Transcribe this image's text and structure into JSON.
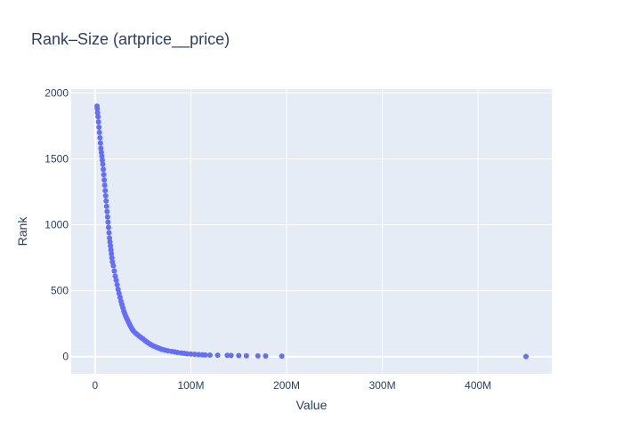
{
  "chart_data": {
    "type": "scatter",
    "title": "Rank–Size (artprice__price)",
    "xlabel": "Value",
    "ylabel": "Rank",
    "xlim": [
      -25000000,
      477000000
    ],
    "ylim": [
      -130,
      2030
    ],
    "x_ticks": [
      {
        "value": 0,
        "label": "0"
      },
      {
        "value": 100000000,
        "label": "100M"
      },
      {
        "value": 200000000,
        "label": "200M"
      },
      {
        "value": 300000000,
        "label": "300M"
      },
      {
        "value": 400000000,
        "label": "400M"
      }
    ],
    "y_ticks": [
      {
        "value": 0,
        "label": "0"
      },
      {
        "value": 500,
        "label": "500"
      },
      {
        "value": 1000,
        "label": "1000"
      },
      {
        "value": 1500,
        "label": "1500"
      },
      {
        "value": 2000,
        "label": "2000"
      }
    ],
    "grid": true,
    "marker_color": "#636efa",
    "plot_bgcolor": "#e5ecf6",
    "points": [
      [
        2000000,
        1900
      ],
      [
        2200000,
        1880
      ],
      [
        2500000,
        1850
      ],
      [
        3000000,
        1820
      ],
      [
        3500000,
        1780
      ],
      [
        4000000,
        1740
      ],
      [
        4500000,
        1700
      ],
      [
        5000000,
        1660
      ],
      [
        5500000,
        1620
      ],
      [
        6000000,
        1580
      ],
      [
        6500000,
        1550
      ],
      [
        7000000,
        1520
      ],
      [
        7500000,
        1490
      ],
      [
        8000000,
        1460
      ],
      [
        8500000,
        1420
      ],
      [
        9000000,
        1380
      ],
      [
        9500000,
        1340
      ],
      [
        10000000,
        1300
      ],
      [
        10500000,
        1260
      ],
      [
        11000000,
        1220
      ],
      [
        11500000,
        1180
      ],
      [
        12000000,
        1140
      ],
      [
        12500000,
        1100
      ],
      [
        13000000,
        1060
      ],
      [
        13500000,
        1020
      ],
      [
        14000000,
        980
      ],
      [
        14500000,
        940
      ],
      [
        15000000,
        900
      ],
      [
        15500000,
        870
      ],
      [
        16000000,
        840
      ],
      [
        16500000,
        810
      ],
      [
        17000000,
        780
      ],
      [
        17500000,
        750
      ],
      [
        18000000,
        720
      ],
      [
        19000000,
        690
      ],
      [
        20000000,
        650
      ],
      [
        21000000,
        610
      ],
      [
        22000000,
        580
      ],
      [
        23000000,
        545
      ],
      [
        24000000,
        510
      ],
      [
        25000000,
        480
      ],
      [
        26000000,
        450
      ],
      [
        27000000,
        420
      ],
      [
        28000000,
        395
      ],
      [
        29000000,
        370
      ],
      [
        30000000,
        345
      ],
      [
        31000000,
        325
      ],
      [
        32000000,
        305
      ],
      [
        33000000,
        290
      ],
      [
        34000000,
        275
      ],
      [
        35000000,
        260
      ],
      [
        36000000,
        245
      ],
      [
        37000000,
        230
      ],
      [
        38000000,
        218
      ],
      [
        39000000,
        205
      ],
      [
        40000000,
        195
      ],
      [
        42000000,
        180
      ],
      [
        44000000,
        168
      ],
      [
        46000000,
        155
      ],
      [
        48000000,
        145
      ],
      [
        50000000,
        135
      ],
      [
        52000000,
        122
      ],
      [
        54000000,
        112
      ],
      [
        56000000,
        102
      ],
      [
        58000000,
        92
      ],
      [
        60000000,
        84
      ],
      [
        62000000,
        78
      ],
      [
        64000000,
        72
      ],
      [
        66000000,
        66
      ],
      [
        68000000,
        60
      ],
      [
        70000000,
        55
      ],
      [
        73000000,
        50
      ],
      [
        76000000,
        45
      ],
      [
        80000000,
        40
      ],
      [
        83000000,
        36
      ],
      [
        86000000,
        32
      ],
      [
        90000000,
        28
      ],
      [
        93000000,
        25
      ],
      [
        96000000,
        22
      ],
      [
        100000000,
        20
      ],
      [
        104000000,
        18
      ],
      [
        108000000,
        16
      ],
      [
        112000000,
        14
      ],
      [
        115000000,
        13
      ],
      [
        120000000,
        12
      ],
      [
        128000000,
        11
      ],
      [
        138000000,
        10
      ],
      [
        142000000,
        9
      ],
      [
        150000000,
        8
      ],
      [
        158000000,
        7
      ],
      [
        170000000,
        6
      ],
      [
        178000000,
        5
      ],
      [
        195000000,
        4
      ],
      [
        450000000,
        1
      ]
    ]
  }
}
